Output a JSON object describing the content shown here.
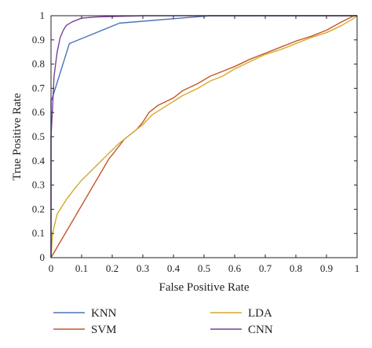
{
  "chart_data": {
    "type": "line",
    "title": "",
    "xlabel": "False Positive Rate",
    "ylabel": "True Positive Rate",
    "xlim": [
      0,
      1
    ],
    "ylim": [
      0,
      1
    ],
    "xticks": [
      "0",
      "0.1",
      "0.2",
      "0.3",
      "0.4",
      "0.5",
      "0.6",
      "0.7",
      "0.8",
      "0.9",
      "1"
    ],
    "yticks": [
      "0",
      "0.1",
      "0.2",
      "0.3",
      "0.4",
      "0.5",
      "0.6",
      "0.7",
      "0.8",
      "0.9",
      "1"
    ],
    "grid": false,
    "legend_position": "bottom",
    "series": [
      {
        "name": "KNN",
        "color": "#4a72b8",
        "points": [
          [
            0,
            0
          ],
          [
            0,
            0.65
          ],
          [
            0.003,
            0.655
          ],
          [
            0.06,
            0.885
          ],
          [
            0.07,
            0.89
          ],
          [
            0.225,
            0.97
          ],
          [
            0.23,
            0.97
          ],
          [
            0.52,
            1.0
          ],
          [
            1,
            1.0
          ]
        ]
      },
      {
        "name": "SVM",
        "color": "#c4562a",
        "points": [
          [
            0,
            0
          ],
          [
            0.19,
            0.41
          ],
          [
            0.2,
            0.425
          ],
          [
            0.24,
            0.49
          ],
          [
            0.25,
            0.5
          ],
          [
            0.28,
            0.53
          ],
          [
            0.3,
            0.56
          ],
          [
            0.32,
            0.6
          ],
          [
            0.35,
            0.63
          ],
          [
            0.4,
            0.66
          ],
          [
            0.43,
            0.69
          ],
          [
            0.48,
            0.72
          ],
          [
            0.52,
            0.75
          ],
          [
            0.56,
            0.77
          ],
          [
            0.6,
            0.79
          ],
          [
            0.65,
            0.82
          ],
          [
            0.7,
            0.845
          ],
          [
            0.75,
            0.87
          ],
          [
            0.8,
            0.895
          ],
          [
            0.85,
            0.915
          ],
          [
            0.9,
            0.94
          ],
          [
            0.95,
            0.975
          ],
          [
            0.99,
            1.0
          ],
          [
            1,
            1.0
          ]
        ]
      },
      {
        "name": "LDA",
        "color": "#d4a92a",
        "points": [
          [
            0,
            0
          ],
          [
            0.005,
            0.1
          ],
          [
            0.02,
            0.18
          ],
          [
            0.05,
            0.24
          ],
          [
            0.08,
            0.29
          ],
          [
            0.1,
            0.32
          ],
          [
            0.14,
            0.37
          ],
          [
            0.18,
            0.42
          ],
          [
            0.22,
            0.47
          ],
          [
            0.25,
            0.5
          ],
          [
            0.3,
            0.55
          ],
          [
            0.33,
            0.59
          ],
          [
            0.38,
            0.63
          ],
          [
            0.43,
            0.67
          ],
          [
            0.48,
            0.7
          ],
          [
            0.52,
            0.73
          ],
          [
            0.56,
            0.75
          ],
          [
            0.6,
            0.78
          ],
          [
            0.65,
            0.81
          ],
          [
            0.7,
            0.84
          ],
          [
            0.75,
            0.86
          ],
          [
            0.8,
            0.885
          ],
          [
            0.85,
            0.91
          ],
          [
            0.9,
            0.93
          ],
          [
            0.95,
            0.96
          ],
          [
            0.99,
            0.99
          ],
          [
            1,
            1.0
          ]
        ]
      },
      {
        "name": "CNN",
        "color": "#7b3f9e",
        "points": [
          [
            0,
            0
          ],
          [
            0,
            0.5
          ],
          [
            0.005,
            0.62
          ],
          [
            0.01,
            0.75
          ],
          [
            0.02,
            0.85
          ],
          [
            0.03,
            0.91
          ],
          [
            0.04,
            0.94
          ],
          [
            0.05,
            0.96
          ],
          [
            0.07,
            0.975
          ],
          [
            0.1,
            0.99
          ],
          [
            0.15,
            0.995
          ],
          [
            0.3,
            1.0
          ],
          [
            1,
            1.0
          ]
        ]
      }
    ]
  }
}
